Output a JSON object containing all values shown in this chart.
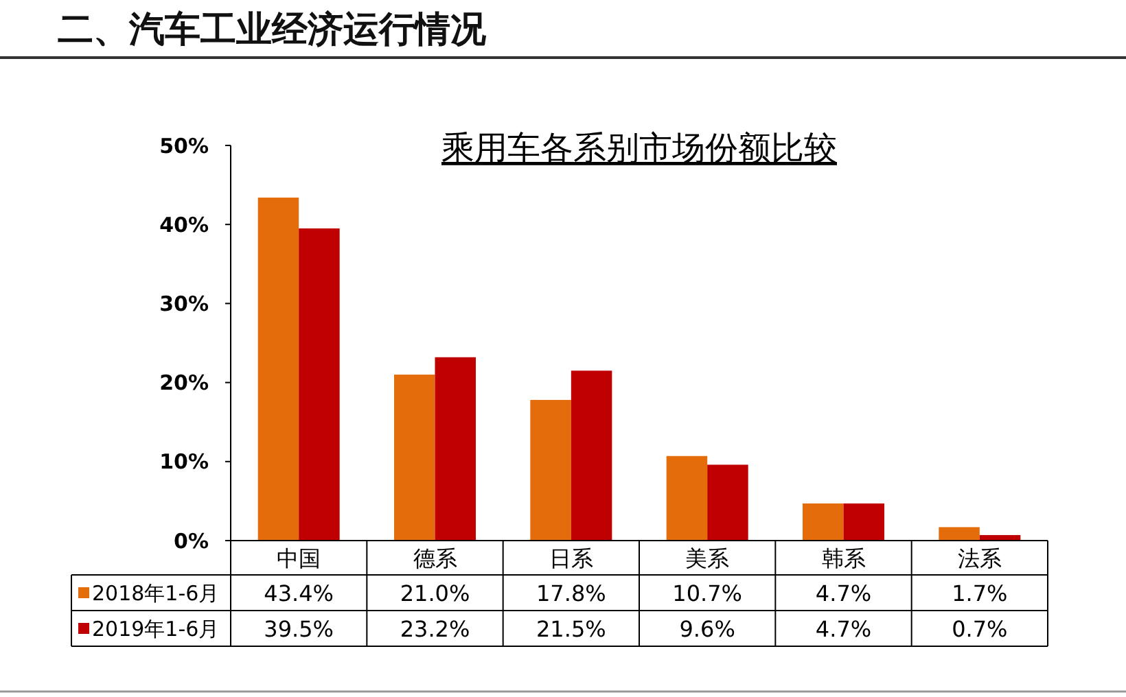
{
  "chart_data": {
    "type": "bar",
    "title": "二、汽车工业经济运行情况",
    "subtitle": "乘用车各系别市场份额比较",
    "categories": [
      "中国",
      "德系",
      "日系",
      "美系",
      "韩系",
      "法系"
    ],
    "series": [
      {
        "name": "2018年1-6月",
        "color": "#e46c0a",
        "values": [
          43.4,
          21.0,
          17.8,
          10.7,
          4.7,
          1.7
        ],
        "value_labels": [
          "43.4%",
          "21.0%",
          "17.8%",
          "10.7%",
          "4.7%",
          "1.7%"
        ]
      },
      {
        "name": "2019年1-6月",
        "color": "#c00000",
        "values": [
          39.5,
          23.2,
          21.5,
          9.6,
          4.7,
          0.7
        ],
        "value_labels": [
          "39.5%",
          "23.2%",
          "21.5%",
          "9.6%",
          "4.7%",
          "0.7%"
        ]
      }
    ],
    "ylim": [
      0,
      50
    ],
    "yticks": [
      {
        "value": 0,
        "label": "0%"
      },
      {
        "value": 10,
        "label": "10%"
      },
      {
        "value": 20,
        "label": "20%"
      },
      {
        "value": 30,
        "label": "30%"
      },
      {
        "value": 40,
        "label": "40%"
      },
      {
        "value": 50,
        "label": "50%"
      }
    ],
    "legend": "bottom left"
  }
}
